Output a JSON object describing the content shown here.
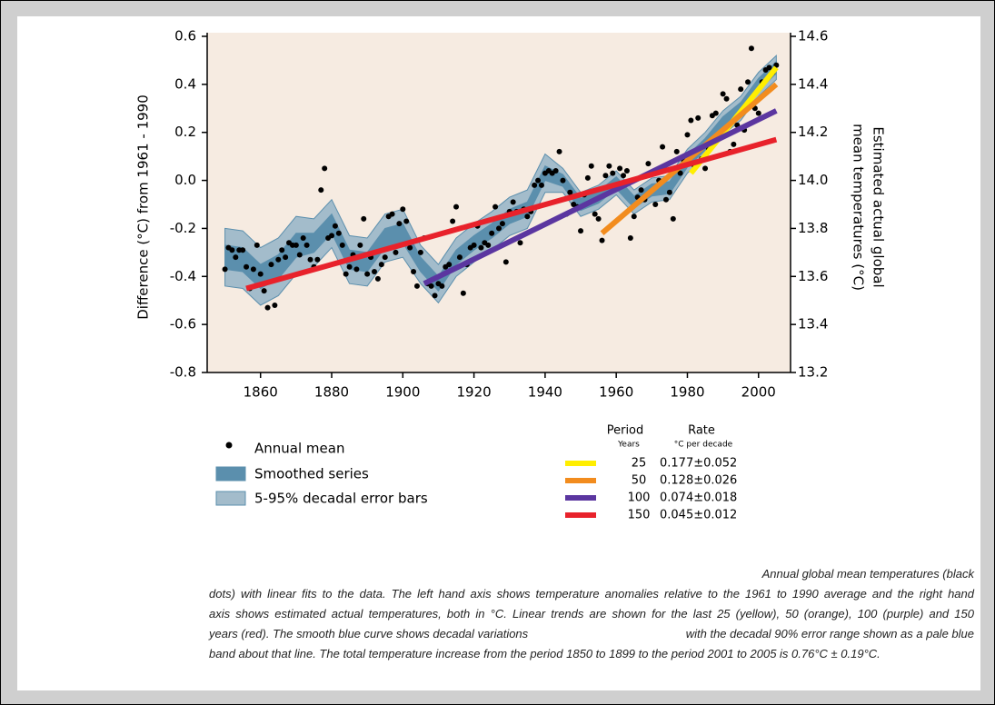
{
  "chart_data": {
    "type": "scatter",
    "ylabel": "Difference (°C) from 1961 - 1990",
    "y2label": [
      "Estimated actual global",
      "mean temperatures (°C)"
    ],
    "xlim": [
      1845,
      2009
    ],
    "ylim": [
      -0.8,
      0.6
    ],
    "y2lim": [
      13.2,
      14.6
    ],
    "xticks": [
      1860,
      1880,
      1900,
      1920,
      1940,
      1960,
      1980,
      2000
    ],
    "yticks": [
      0.6,
      0.4,
      0.2,
      {
        "value": 0,
        "label": "0.0"
      },
      -0.2,
      -0.4,
      -0.6,
      -0.8
    ],
    "y2ticks": [
      14.6,
      14.4,
      14.2,
      {
        "value": 14,
        "label": "14.0"
      },
      13.8,
      13.6,
      13.4,
      13.2
    ],
    "background": "#f6ebe1",
    "points": {
      "name": "Annual mean",
      "color": "#000000",
      "x": [
        1850,
        1851,
        1852,
        1853,
        1854,
        1855,
        1856,
        1857,
        1858,
        1859,
        1860,
        1861,
        1862,
        1863,
        1864,
        1865,
        1866,
        1867,
        1868,
        1869,
        1870,
        1871,
        1872,
        1873,
        1874,
        1875,
        1876,
        1877,
        1878,
        1879,
        1880,
        1881,
        1882,
        1883,
        1884,
        1885,
        1886,
        1887,
        1888,
        1889,
        1890,
        1891,
        1892,
        1893,
        1894,
        1895,
        1896,
        1897,
        1898,
        1899,
        1900,
        1901,
        1902,
        1903,
        1904,
        1905,
        1906,
        1907,
        1908,
        1909,
        1910,
        1911,
        1912,
        1913,
        1914,
        1915,
        1916,
        1917,
        1918,
        1919,
        1920,
        1921,
        1922,
        1923,
        1924,
        1925,
        1926,
        1927,
        1928,
        1929,
        1930,
        1931,
        1932,
        1933,
        1934,
        1935,
        1936,
        1937,
        1938,
        1939,
        1940,
        1941,
        1942,
        1943,
        1944,
        1945,
        1946,
        1947,
        1948,
        1949,
        1950,
        1951,
        1952,
        1953,
        1954,
        1955,
        1956,
        1957,
        1958,
        1959,
        1960,
        1961,
        1962,
        1963,
        1964,
        1965,
        1966,
        1967,
        1968,
        1969,
        1970,
        1971,
        1972,
        1973,
        1974,
        1975,
        1976,
        1977,
        1978,
        1979,
        1980,
        1981,
        1982,
        1983,
        1984,
        1985,
        1986,
        1987,
        1988,
        1989,
        1990,
        1991,
        1992,
        1993,
        1994,
        1995,
        1996,
        1997,
        1998,
        1999,
        2000,
        2001,
        2002,
        2003,
        2004,
        2005
      ],
      "values": [
        -0.37,
        -0.28,
        -0.29,
        -0.32,
        -0.29,
        -0.29,
        -0.36,
        -0.45,
        -0.37,
        -0.27,
        -0.39,
        -0.46,
        -0.53,
        -0.35,
        -0.52,
        -0.33,
        -0.29,
        -0.32,
        -0.26,
        -0.27,
        -0.27,
        -0.31,
        -0.24,
        -0.27,
        -0.33,
        -0.36,
        -0.33,
        -0.04,
        0.05,
        -0.24,
        -0.23,
        -0.19,
        -0.22,
        -0.27,
        -0.39,
        -0.36,
        -0.31,
        -0.37,
        -0.27,
        -0.16,
        -0.39,
        -0.32,
        -0.38,
        -0.41,
        -0.35,
        -0.32,
        -0.15,
        -0.14,
        -0.3,
        -0.18,
        -0.12,
        -0.17,
        -0.28,
        -0.38,
        -0.44,
        -0.3,
        -0.24,
        -0.43,
        -0.44,
        -0.48,
        -0.43,
        -0.44,
        -0.36,
        -0.35,
        -0.17,
        -0.11,
        -0.32,
        -0.47,
        -0.35,
        -0.28,
        -0.27,
        -0.19,
        -0.28,
        -0.26,
        -0.27,
        -0.22,
        -0.11,
        -0.2,
        -0.18,
        -0.34,
        -0.13,
        -0.09,
        -0.13,
        -0.26,
        -0.12,
        -0.15,
        -0.13,
        -0.02,
        0.0,
        -0.02,
        0.03,
        0.04,
        0.03,
        0.04,
        0.12,
        0.0,
        -0.14,
        -0.05,
        -0.1,
        -0.11,
        -0.21,
        -0.06,
        0.01,
        0.06,
        -0.14,
        -0.16,
        -0.25,
        0.02,
        0.06,
        0.03,
        -0.03,
        0.05,
        0.02,
        0.04,
        -0.24,
        -0.15,
        -0.07,
        -0.04,
        -0.08,
        0.07,
        0.03,
        -0.1,
        0.0,
        0.14,
        -0.08,
        -0.05,
        -0.16,
        0.12,
        0.03,
        0.08,
        0.19,
        0.25,
        0.06,
        0.26,
        0.09,
        0.05,
        0.13,
        0.27,
        0.28,
        0.19,
        0.36,
        0.34,
        0.12,
        0.15,
        0.23,
        0.38,
        0.21,
        0.41,
        0.55,
        0.3,
        0.28,
        0.41,
        0.46,
        0.47,
        0.45,
        0.48
      ]
    },
    "bands": [
      {
        "name": "5-95% decadal error bars",
        "color": "#a3bccb",
        "edge": "#5b8fad",
        "x": [
          1850,
          1855,
          1860,
          1865,
          1870,
          1875,
          1880,
          1885,
          1890,
          1895,
          1900,
          1905,
          1910,
          1915,
          1920,
          1925,
          1930,
          1935,
          1940,
          1945,
          1950,
          1955,
          1960,
          1965,
          1970,
          1975,
          1980,
          1985,
          1990,
          1995,
          2000,
          2005
        ],
        "upper": [
          -0.2,
          -0.21,
          -0.28,
          -0.24,
          -0.15,
          -0.16,
          -0.08,
          -0.23,
          -0.24,
          -0.14,
          -0.12,
          -0.27,
          -0.35,
          -0.24,
          -0.18,
          -0.13,
          -0.07,
          -0.04,
          0.11,
          0.05,
          -0.05,
          -0.02,
          0.04,
          -0.04,
          0.01,
          0.02,
          0.13,
          0.2,
          0.29,
          0.35,
          0.45,
          0.52
        ],
        "lower": [
          -0.44,
          -0.45,
          -0.52,
          -0.48,
          -0.39,
          -0.36,
          -0.28,
          -0.43,
          -0.44,
          -0.34,
          -0.32,
          -0.43,
          -0.51,
          -0.4,
          -0.34,
          -0.29,
          -0.23,
          -0.2,
          -0.05,
          -0.05,
          -0.15,
          -0.12,
          -0.06,
          -0.14,
          -0.09,
          -0.08,
          0.03,
          0.1,
          0.19,
          0.25,
          0.35,
          0.42
        ]
      },
      {
        "name": "Smoothed series",
        "color": "#5b8fad",
        "edge": "#5b8fad",
        "x": [
          1850,
          1855,
          1860,
          1865,
          1870,
          1875,
          1880,
          1885,
          1890,
          1895,
          1900,
          1905,
          1910,
          1915,
          1920,
          1925,
          1930,
          1935,
          1940,
          1945,
          1950,
          1955,
          1960,
          1965,
          1970,
          1975,
          1980,
          1985,
          1990,
          1995,
          2000,
          2005
        ],
        "upper": [
          -0.27,
          -0.28,
          -0.35,
          -0.31,
          -0.22,
          -0.22,
          -0.14,
          -0.29,
          -0.3,
          -0.2,
          -0.18,
          -0.32,
          -0.4,
          -0.29,
          -0.23,
          -0.18,
          -0.12,
          -0.09,
          0.06,
          0.025,
          -0.075,
          -0.045,
          0.015,
          -0.065,
          -0.015,
          -0.005,
          0.105,
          0.175,
          0.265,
          0.325,
          0.425,
          0.495
        ],
        "lower": [
          -0.37,
          -0.38,
          -0.45,
          -0.41,
          -0.32,
          -0.3,
          -0.22,
          -0.37,
          -0.38,
          -0.28,
          -0.26,
          -0.38,
          -0.46,
          -0.35,
          -0.29,
          -0.24,
          -0.18,
          -0.15,
          0.0,
          -0.025,
          -0.125,
          -0.095,
          -0.035,
          -0.115,
          -0.065,
          -0.055,
          0.055,
          0.125,
          0.215,
          0.275,
          0.375,
          0.445
        ]
      }
    ],
    "trends": {
      "period_header": "Period",
      "period_unit": "Years",
      "rate_header": "Rate",
      "rate_unit": "°C  per decade",
      "series": [
        {
          "name": "25",
          "rate": "0.177±0.052",
          "color": "#ffee00",
          "x": [
            1981,
            2005
          ],
          "values": [
            0.03,
            0.47
          ]
        },
        {
          "name": "50",
          "rate": "0.128±0.026",
          "color": "#f28c1e",
          "x": [
            1956,
            2005
          ],
          "values": [
            -0.22,
            0.4
          ]
        },
        {
          "name": "100",
          "rate": "0.074±0.018",
          "color": "#5b36a0",
          "x": [
            1906,
            2005
          ],
          "values": [
            -0.43,
            0.29
          ]
        },
        {
          "name": "150",
          "rate": "0.045±0.012",
          "color": "#e8222b",
          "x": [
            1856,
            2005
          ],
          "values": [
            -0.45,
            0.17
          ]
        }
      ]
    }
  },
  "caption": {
    "lines": [
      "Annual global mean temperatures (black",
      "dots) with linear fits to the data. The left hand axis shows temperature anomalies relative to the 1961 to 1990 average and the right hand",
      "axis shows estimated actual temperatures, both in °C. Linear trends are shown for the last 25 (yellow), 50 (orange), 100 (purple) and 150",
      "years (red). The smooth blue curve shows decadal variations",
      "with the decadal 90% error range shown as a pale blue",
      "band about that line. The total temperature increase from the period 1850 to 1899 to the period 2001 to 2005 is 0.76°C ± 0.19°C."
    ]
  }
}
